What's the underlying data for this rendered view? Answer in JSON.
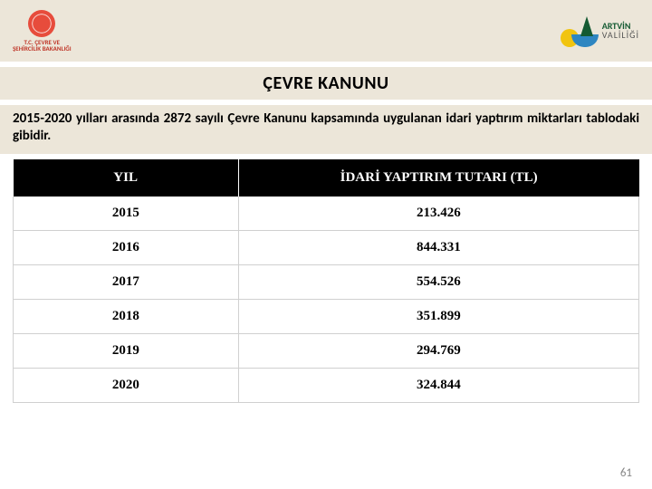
{
  "header": {
    "left_logo_line1": "T.C. ÇEVRE VE",
    "left_logo_line2": "ŞEHİRCİLİK BAKANLIĞI",
    "right_logo_line1": "ARTVİN",
    "right_logo_line2": "VALİLİĞİ"
  },
  "title": "ÇEVRE KANUNU",
  "description": "2015-2020 yılları arasında 2872 sayılı Çevre Kanunu kapsamında uygulanan idari yaptırım miktarları tablodaki gibidir.",
  "table": {
    "type": "table",
    "columns": [
      "YIL",
      "İDARİ YAPTIRIM TUTARI (TL)"
    ],
    "column_widths_pct": [
      36,
      64
    ],
    "header_bg": "#000000",
    "header_fg": "#ffffff",
    "header_font": "Times New Roman",
    "header_fontsize_pt": 12,
    "cell_bg": "#ffffff",
    "cell_fg": "#000000",
    "cell_fontsize_pt": 12,
    "cell_font": "Times New Roman",
    "grid_color": "#d0d0d0",
    "rows": [
      [
        "2015",
        "213.426"
      ],
      [
        "2016",
        "844.331"
      ],
      [
        "2017",
        "554.526"
      ],
      [
        "2018",
        "351.899"
      ],
      [
        "2019",
        "294.769"
      ],
      [
        "2020",
        "324.844"
      ]
    ]
  },
  "band_bg": "#ece6d9",
  "page_number": "61"
}
